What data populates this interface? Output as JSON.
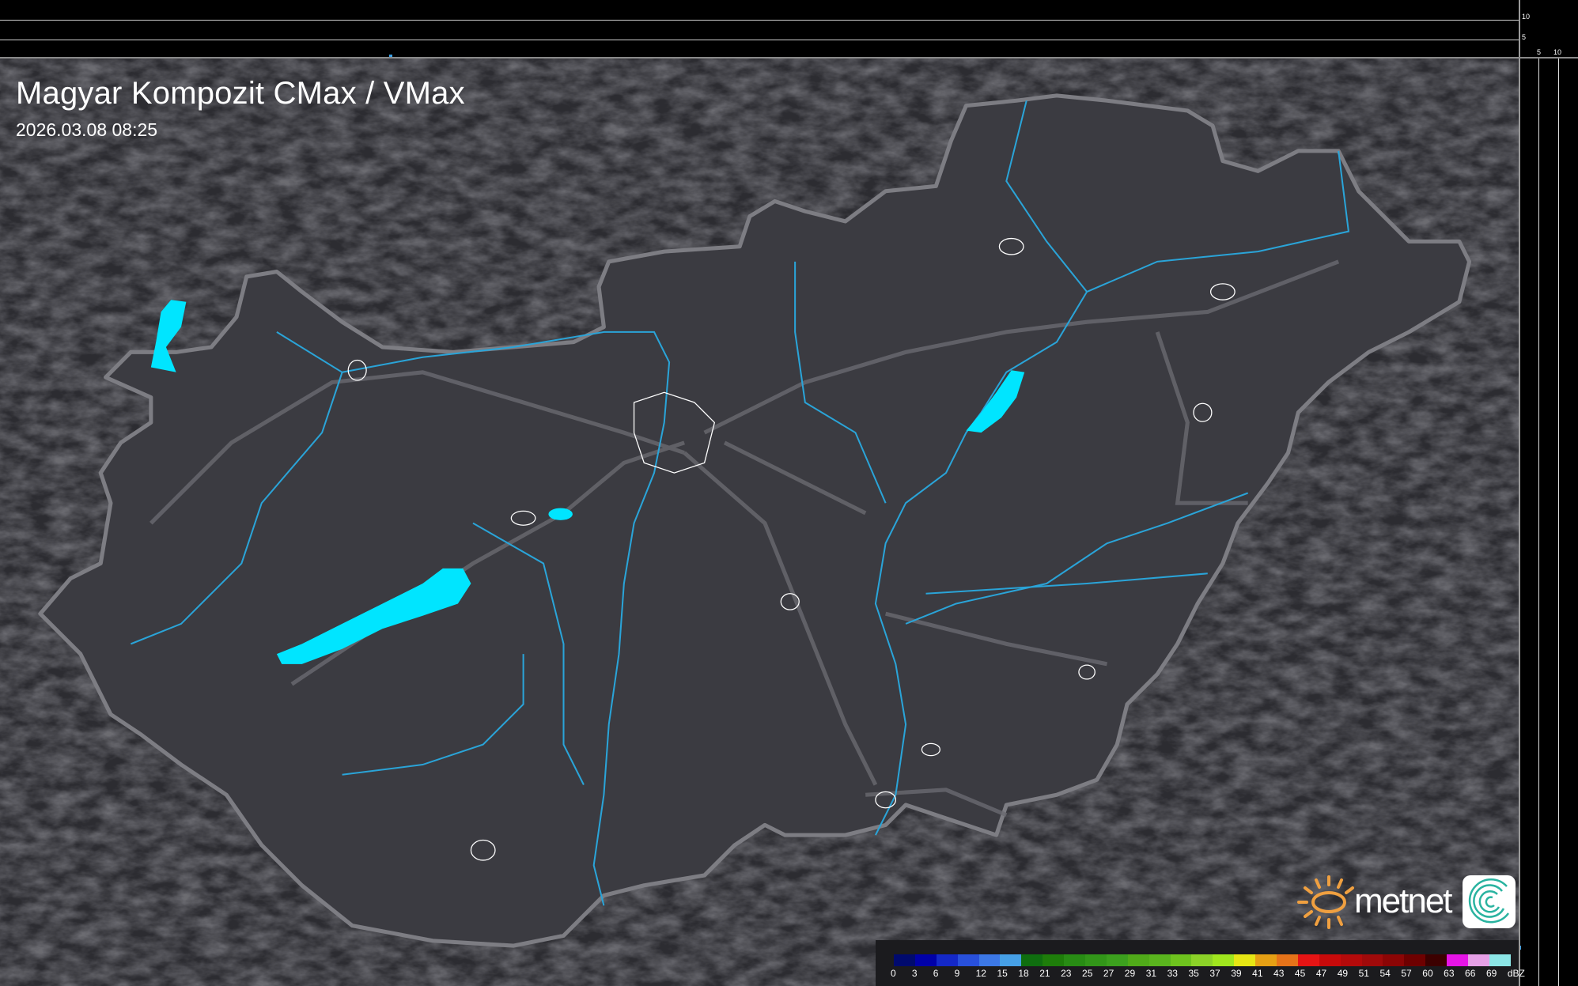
{
  "header": {
    "title": "Magyar Kompozit CMax / VMax",
    "timestamp": "2026.03.08 08:25"
  },
  "scale_strip": {
    "vertical_labels": [
      "10",
      "5"
    ],
    "horizontal_labels": [
      "5",
      "10"
    ]
  },
  "legend": {
    "unit": "dBZ",
    "labels": [
      "0",
      "3",
      "6",
      "9",
      "12",
      "15",
      "18",
      "21",
      "23",
      "25",
      "27",
      "29",
      "31",
      "33",
      "35",
      "37",
      "39",
      "41",
      "43",
      "45",
      "47",
      "49",
      "51",
      "54",
      "57",
      "60",
      "63",
      "66",
      "69"
    ],
    "colors": [
      "#000a6e",
      "#0000a8",
      "#1428c8",
      "#2850dc",
      "#3c78e6",
      "#46a0e6",
      "#0f6e0f",
      "#1e7d0a",
      "#288c14",
      "#329619",
      "#3ca01e",
      "#50aa19",
      "#5ab41e",
      "#6ec31e",
      "#8cd228",
      "#a0e61e",
      "#e6e614",
      "#e6a014",
      "#e67319",
      "#e61414",
      "#c80a0a",
      "#b40a0a",
      "#a00a0a",
      "#8c0505",
      "#6e0000",
      "#3c0000",
      "#e614e6",
      "#e6a0e6",
      "#8ce6e6"
    ]
  },
  "logo": {
    "brand": "metnet",
    "sun_color": "#f0a040",
    "app_icon": "spiral-icon"
  },
  "map_colors": {
    "background": "#2c2c31",
    "country": "#3b3b41",
    "border": "#8a8a90",
    "river": "#2aa4d8",
    "lake": "#00e5ff"
  }
}
